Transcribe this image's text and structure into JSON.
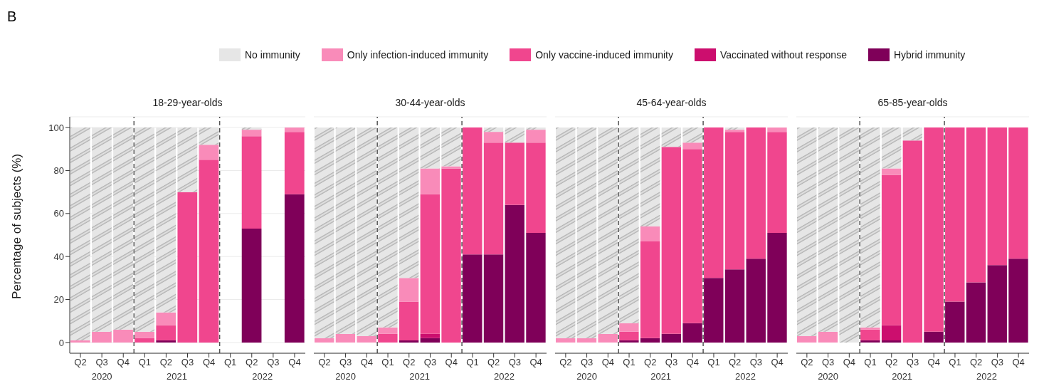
{
  "chart_data": [
    {
      "type": "bar",
      "title": "18-29-year-olds",
      "ylabel": "Percentage of subjects (%)",
      "categories": [
        "Q2",
        "Q3",
        "Q4",
        "Q1",
        "Q2",
        "Q3",
        "Q4",
        "Q1",
        "Q2",
        "Q3",
        "Q4"
      ],
      "stacked": true,
      "ylim": [
        -5,
        105
      ],
      "yticks": [
        0,
        20,
        40,
        60,
        80,
        100
      ],
      "grid": "y",
      "legend": "top",
      "annotations": [
        "2020",
        "2021",
        "2022"
      ],
      "series": [
        {
          "name": "Hybrid immunity",
          "color": "#7f0059",
          "values": [
            null,
            null,
            null,
            null,
            1,
            null,
            null,
            null,
            53,
            null,
            69
          ]
        },
        {
          "name": "Vaccinated without response",
          "color": "#cc0e6e",
          "values": [
            null,
            null,
            null,
            null,
            null,
            null,
            null,
            null,
            null,
            null,
            null
          ]
        },
        {
          "name": "Only vaccine-induced immunity",
          "color": "#f0468e",
          "values": [
            null,
            null,
            null,
            2,
            7,
            70,
            85,
            null,
            43,
            null,
            29
          ]
        },
        {
          "name": "Only infection-induced immunity",
          "color": "#f98bb9",
          "values": [
            1,
            5,
            6,
            3,
            6,
            null,
            7,
            null,
            3,
            null,
            2
          ]
        },
        {
          "name": "No immunity",
          "color": "#e6e6e6",
          "values": [
            99,
            95,
            94,
            95,
            86,
            30,
            8,
            null,
            1,
            null,
            0
          ]
        }
      ]
    },
    {
      "type": "bar",
      "title": "30-44-year-olds",
      "categories": [
        "Q2",
        "Q3",
        "Q4",
        "Q1",
        "Q2",
        "Q3",
        "Q4",
        "Q1",
        "Q2",
        "Q3",
        "Q4"
      ],
      "stacked": true,
      "ylim": [
        -5,
        105
      ],
      "yticks": [
        0,
        20,
        40,
        60,
        80,
        100
      ],
      "grid": "y",
      "tick_labels": "x",
      "annotations": [
        "2020",
        "2021",
        "2022"
      ],
      "series": [
        {
          "color": "#7f0059",
          "values": [
            null,
            null,
            null,
            null,
            1,
            2,
            null,
            41,
            41,
            64,
            51
          ]
        },
        {
          "color": "#cc0e6e",
          "values": [
            null,
            null,
            null,
            null,
            null,
            2,
            null,
            null,
            null,
            null,
            null
          ]
        },
        {
          "color": "#f0468e",
          "values": [
            null,
            null,
            null,
            4,
            18,
            65,
            81,
            59,
            52,
            29,
            42
          ]
        },
        {
          "color": "#f98bb9",
          "values": [
            2,
            4,
            3,
            3,
            11,
            12,
            1,
            null,
            5,
            null,
            6
          ]
        },
        {
          "color": "#e6e6e6",
          "values": [
            98,
            96,
            97,
            93,
            70,
            19,
            18,
            0,
            2,
            7,
            1
          ]
        }
      ]
    },
    {
      "type": "bar",
      "title": "45-64-year-olds",
      "categories": [
        "Q2",
        "Q3",
        "Q4",
        "Q1",
        "Q2",
        "Q3",
        "Q4",
        "Q1",
        "Q2",
        "Q3",
        "Q4"
      ],
      "stacked": true,
      "ylim": [
        -5,
        105
      ],
      "yticks": [
        0,
        20,
        40,
        60,
        80,
        100
      ],
      "grid": "y",
      "tick_labels": "x",
      "annotations": [
        "2020",
        "2021",
        "2022"
      ],
      "series": [
        {
          "color": "#7f0059",
          "values": [
            null,
            null,
            null,
            1,
            2,
            4,
            9,
            30,
            34,
            39,
            51
          ]
        },
        {
          "color": "#cc0e6e",
          "values": [
            null,
            null,
            null,
            null,
            null,
            null,
            null,
            null,
            null,
            null,
            null
          ]
        },
        {
          "color": "#f0468e",
          "values": [
            null,
            null,
            null,
            4,
            45,
            87,
            81,
            70,
            64,
            61,
            47
          ]
        },
        {
          "color": "#f98bb9",
          "values": [
            2,
            2,
            4,
            4,
            7,
            null,
            3,
            null,
            1,
            null,
            2
          ]
        },
        {
          "color": "#e6e6e6",
          "values": [
            98,
            98,
            96,
            91,
            46,
            9,
            7,
            0,
            1,
            0,
            0
          ]
        }
      ]
    },
    {
      "type": "bar",
      "title": "65-85-year-olds",
      "categories": [
        "Q2",
        "Q3",
        "Q4",
        "Q1",
        "Q2",
        "Q3",
        "Q4",
        "Q1",
        "Q2",
        "Q3",
        "Q4"
      ],
      "stacked": true,
      "ylim": [
        -5,
        105
      ],
      "yticks": [
        0,
        20,
        40,
        60,
        80,
        100
      ],
      "grid": "y",
      "tick_labels": "x",
      "annotations": [
        "2020",
        "2021",
        "2022"
      ],
      "series": [
        {
          "color": "#7f0059",
          "values": [
            null,
            null,
            null,
            1,
            1,
            null,
            5,
            19,
            28,
            36,
            39
          ]
        },
        {
          "color": "#cc0e6e",
          "values": [
            null,
            null,
            null,
            null,
            7,
            null,
            null,
            null,
            null,
            null,
            null
          ]
        },
        {
          "color": "#f0468e",
          "values": [
            null,
            null,
            null,
            5,
            70,
            94,
            95,
            81,
            72,
            64,
            61
          ]
        },
        {
          "color": "#f98bb9",
          "values": [
            3,
            5,
            null,
            1,
            3,
            null,
            null,
            null,
            null,
            null,
            null
          ]
        },
        {
          "color": "#e6e6e6",
          "values": [
            97,
            95,
            100,
            93,
            19,
            6,
            0,
            0,
            0,
            0,
            0
          ]
        }
      ]
    },
    {
      "type": "other",
      "annotations": [
        "B"
      ]
    }
  ]
}
